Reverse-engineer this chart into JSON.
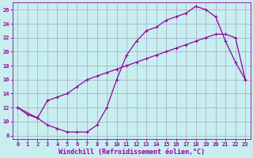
{
  "xlabel": "Windchill (Refroidissement éolien,°C)",
  "background_color": "#c8eef0",
  "grid_color": "#9999bb",
  "line_color": "#990099",
  "xlim": [
    -0.5,
    23.5
  ],
  "ylim": [
    7.5,
    27
  ],
  "yticks": [
    8,
    10,
    12,
    14,
    16,
    18,
    20,
    22,
    24,
    26
  ],
  "xticks": [
    0,
    1,
    2,
    3,
    4,
    5,
    6,
    7,
    8,
    9,
    10,
    11,
    12,
    13,
    14,
    15,
    16,
    17,
    18,
    19,
    20,
    21,
    22,
    23
  ],
  "line1_x": [
    0,
    1,
    2,
    3,
    4,
    5,
    6,
    7,
    8,
    9,
    10,
    11,
    12,
    13,
    14,
    15,
    16,
    17,
    18,
    19,
    20,
    21,
    22,
    23
  ],
  "line1_y": [
    12,
    11,
    10.5,
    9.5,
    9.0,
    8.5,
    8.5,
    8.5,
    9.5,
    12,
    16,
    19.5,
    21.5,
    23,
    23.5,
    24.5,
    25,
    25.5,
    26.5,
    26,
    25,
    21.5,
    18.5,
    16
  ],
  "line2_x": [
    0,
    2,
    3,
    4,
    5,
    6,
    7,
    8,
    9,
    10,
    11,
    12,
    13,
    14,
    15,
    16,
    17,
    18,
    19,
    20,
    21,
    22,
    23
  ],
  "line2_y": [
    12,
    10.5,
    13,
    13.5,
    14,
    15,
    16,
    16.5,
    17,
    17.5,
    18,
    18.5,
    19,
    19.5,
    20,
    20.5,
    21,
    21.5,
    22,
    22.5,
    22.5,
    22,
    16
  ],
  "marker": "+",
  "marker_size": 3,
  "marker_edge_width": 0.8,
  "line_width": 0.9,
  "tick_fontsize": 5.0,
  "xlabel_fontsize": 6.0,
  "spine_linewidth": 0.6
}
